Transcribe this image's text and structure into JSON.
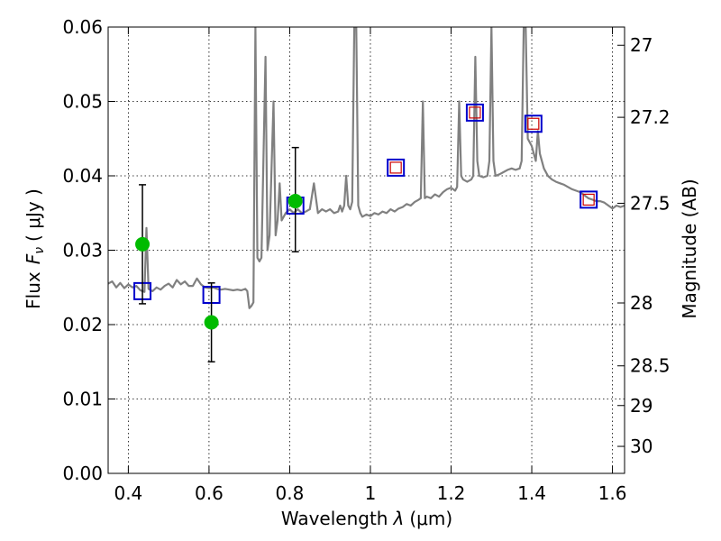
{
  "chart_data": {
    "type": "scatter",
    "title": "",
    "xlabel": "Wavelength",
    "xlabel_symbol": "λ",
    "xlabel_unit": "(μm)",
    "ylabel": "Flux",
    "ylabel_symbol": "F",
    "ylabel_subscript": "ν",
    "ylabel_unit": "( μJy )",
    "ylabel_right": "Magnitude (AB)",
    "xlim": [
      0.35,
      1.63
    ],
    "ylim": [
      0.0,
      0.06
    ],
    "x_ticks": [
      0.4,
      0.6,
      0.8,
      1.0,
      1.2,
      1.4,
      1.6
    ],
    "x_tick_labels": [
      "0.4",
      "0.6",
      "0.8",
      "1",
      "1.2",
      "1.4",
      "1.6"
    ],
    "y_ticks": [
      0.0,
      0.01,
      0.02,
      0.03,
      0.04,
      0.05,
      0.06
    ],
    "y_tick_labels": [
      "0.00",
      "0.01",
      "0.02",
      "0.03",
      "0.04",
      "0.05",
      "0.06"
    ],
    "right_ticks": [
      {
        "mag": 27,
        "label": "27"
      },
      {
        "mag": 27.2,
        "label": "27.2"
      },
      {
        "mag": 27.5,
        "label": "27.5"
      },
      {
        "mag": 28,
        "label": "28"
      },
      {
        "mag": 28.5,
        "label": "28.5"
      },
      {
        "mag": 29,
        "label": "29"
      },
      {
        "mag": 30,
        "label": "30"
      }
    ],
    "grid": true,
    "series": [
      {
        "kind": "line",
        "color": "#808080",
        "points": [
          [
            0.35,
            0.0255
          ],
          [
            0.36,
            0.0258
          ],
          [
            0.37,
            0.025
          ],
          [
            0.38,
            0.0256
          ],
          [
            0.39,
            0.0249
          ],
          [
            0.4,
            0.0254
          ],
          [
            0.41,
            0.025
          ],
          [
            0.42,
            0.0252
          ],
          [
            0.43,
            0.0246
          ],
          [
            0.44,
            0.0244
          ],
          [
            0.445,
            0.033
          ],
          [
            0.45,
            0.0248
          ],
          [
            0.46,
            0.0245
          ],
          [
            0.47,
            0.025
          ],
          [
            0.48,
            0.0247
          ],
          [
            0.49,
            0.0252
          ],
          [
            0.5,
            0.0255
          ],
          [
            0.51,
            0.025
          ],
          [
            0.52,
            0.026
          ],
          [
            0.53,
            0.0254
          ],
          [
            0.54,
            0.0258
          ],
          [
            0.55,
            0.0252
          ],
          [
            0.56,
            0.0252
          ],
          [
            0.57,
            0.0262
          ],
          [
            0.58,
            0.0254
          ],
          [
            0.59,
            0.025
          ],
          [
            0.6,
            0.0249
          ],
          [
            0.61,
            0.025
          ],
          [
            0.62,
            0.0248
          ],
          [
            0.63,
            0.0247
          ],
          [
            0.64,
            0.0248
          ],
          [
            0.65,
            0.0247
          ],
          [
            0.66,
            0.0246
          ],
          [
            0.67,
            0.0247
          ],
          [
            0.68,
            0.0246
          ],
          [
            0.69,
            0.0248
          ],
          [
            0.695,
            0.0245
          ],
          [
            0.7,
            0.0222
          ],
          [
            0.705,
            0.0225
          ],
          [
            0.71,
            0.023
          ],
          [
            0.715,
            0.06
          ],
          [
            0.72,
            0.029
          ],
          [
            0.725,
            0.0285
          ],
          [
            0.73,
            0.029
          ],
          [
            0.74,
            0.056
          ],
          [
            0.745,
            0.03
          ],
          [
            0.75,
            0.032
          ],
          [
            0.76,
            0.05
          ],
          [
            0.765,
            0.032
          ],
          [
            0.77,
            0.034
          ],
          [
            0.775,
            0.039
          ],
          [
            0.78,
            0.034
          ],
          [
            0.79,
            0.035
          ],
          [
            0.8,
            0.0355
          ],
          [
            0.81,
            0.035
          ],
          [
            0.82,
            0.0355
          ],
          [
            0.83,
            0.035
          ],
          [
            0.84,
            0.0352
          ],
          [
            0.85,
            0.0355
          ],
          [
            0.86,
            0.039
          ],
          [
            0.87,
            0.035
          ],
          [
            0.88,
            0.0355
          ],
          [
            0.89,
            0.0352
          ],
          [
            0.9,
            0.0355
          ],
          [
            0.91,
            0.035
          ],
          [
            0.92,
            0.0352
          ],
          [
            0.925,
            0.036
          ],
          [
            0.93,
            0.0352
          ],
          [
            0.935,
            0.036
          ],
          [
            0.94,
            0.04
          ],
          [
            0.945,
            0.036
          ],
          [
            0.95,
            0.0355
          ],
          [
            0.955,
            0.0365
          ],
          [
            0.96,
            0.06
          ],
          [
            0.965,
            0.06
          ],
          [
            0.97,
            0.036
          ],
          [
            0.975,
            0.035
          ],
          [
            0.98,
            0.0345
          ],
          [
            0.99,
            0.0348
          ],
          [
            1.0,
            0.0346
          ],
          [
            1.01,
            0.035
          ],
          [
            1.02,
            0.0348
          ],
          [
            1.03,
            0.0352
          ],
          [
            1.04,
            0.035
          ],
          [
            1.05,
            0.0355
          ],
          [
            1.06,
            0.0352
          ],
          [
            1.07,
            0.0356
          ],
          [
            1.08,
            0.0358
          ],
          [
            1.09,
            0.0362
          ],
          [
            1.1,
            0.036
          ],
          [
            1.11,
            0.0365
          ],
          [
            1.12,
            0.0368
          ],
          [
            1.125,
            0.037
          ],
          [
            1.13,
            0.05
          ],
          [
            1.135,
            0.037
          ],
          [
            1.14,
            0.0372
          ],
          [
            1.15,
            0.037
          ],
          [
            1.16,
            0.0375
          ],
          [
            1.17,
            0.0372
          ],
          [
            1.18,
            0.0378
          ],
          [
            1.19,
            0.0382
          ],
          [
            1.2,
            0.0384
          ],
          [
            1.21,
            0.038
          ],
          [
            1.215,
            0.0385
          ],
          [
            1.22,
            0.05
          ],
          [
            1.225,
            0.04
          ],
          [
            1.23,
            0.0395
          ],
          [
            1.24,
            0.0392
          ],
          [
            1.25,
            0.0395
          ],
          [
            1.255,
            0.04
          ],
          [
            1.26,
            0.056
          ],
          [
            1.265,
            0.042
          ],
          [
            1.27,
            0.04
          ],
          [
            1.28,
            0.0398
          ],
          [
            1.29,
            0.04
          ],
          [
            1.295,
            0.042
          ],
          [
            1.3,
            0.06
          ],
          [
            1.305,
            0.042
          ],
          [
            1.31,
            0.04
          ],
          [
            1.32,
            0.0402
          ],
          [
            1.33,
            0.0405
          ],
          [
            1.34,
            0.0408
          ],
          [
            1.35,
            0.041
          ],
          [
            1.36,
            0.0408
          ],
          [
            1.37,
            0.041
          ],
          [
            1.375,
            0.042
          ],
          [
            1.38,
            0.06
          ],
          [
            1.385,
            0.06
          ],
          [
            1.39,
            0.045
          ],
          [
            1.4,
            0.044
          ],
          [
            1.41,
            0.042
          ],
          [
            1.415,
            0.046
          ],
          [
            1.42,
            0.043
          ],
          [
            1.43,
            0.041
          ],
          [
            1.44,
            0.04
          ],
          [
            1.45,
            0.0395
          ],
          [
            1.46,
            0.0392
          ],
          [
            1.47,
            0.039
          ],
          [
            1.48,
            0.0388
          ],
          [
            1.49,
            0.0385
          ],
          [
            1.5,
            0.0382
          ],
          [
            1.51,
            0.038
          ],
          [
            1.52,
            0.0378
          ],
          [
            1.53,
            0.0374
          ],
          [
            1.54,
            0.037
          ],
          [
            1.55,
            0.0368
          ],
          [
            1.56,
            0.0366
          ],
          [
            1.57,
            0.0366
          ],
          [
            1.58,
            0.0364
          ],
          [
            1.59,
            0.036
          ],
          [
            1.6,
            0.0356
          ],
          [
            1.61,
            0.036
          ],
          [
            1.62,
            0.0358
          ],
          [
            1.63,
            0.036
          ]
        ]
      },
      {
        "kind": "markers",
        "marker": "open-square",
        "color": "#0000cc",
        "points": [
          {
            "x": 0.435,
            "y": 0.0245
          },
          {
            "x": 0.606,
            "y": 0.024
          },
          {
            "x": 0.814,
            "y": 0.036
          },
          {
            "x": 1.063,
            "y": 0.0411
          },
          {
            "x": 1.259,
            "y": 0.0485
          },
          {
            "x": 1.404,
            "y": 0.047
          },
          {
            "x": 1.541,
            "y": 0.0368
          }
        ]
      },
      {
        "kind": "markers",
        "marker": "small-open-square",
        "color": "#cc0000",
        "points": [
          {
            "x": 1.063,
            "y": 0.0411
          },
          {
            "x": 1.259,
            "y": 0.0485
          },
          {
            "x": 1.404,
            "y": 0.047
          },
          {
            "x": 1.541,
            "y": 0.0368
          }
        ]
      },
      {
        "kind": "markers",
        "marker": "filled-circle",
        "color": "#00bb00",
        "error_color": "#000000",
        "points": [
          {
            "x": 0.435,
            "y": 0.0308,
            "ylo": 0.0228,
            "yhi": 0.0388
          },
          {
            "x": 0.606,
            "y": 0.0203,
            "ylo": 0.015,
            "yhi": 0.0256
          },
          {
            "x": 0.814,
            "y": 0.0366,
            "ylo": 0.0298,
            "yhi": 0.0438
          }
        ]
      }
    ]
  }
}
